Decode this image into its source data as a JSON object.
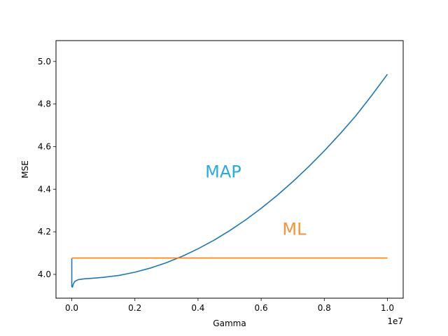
{
  "chart_data": {
    "type": "line",
    "title": "",
    "xlabel": "Gamma",
    "ylabel": "MSE",
    "x_offset_label": "1e7",
    "xlim": [
      -0.05,
      1.05
    ],
    "ylim": [
      3.888,
      5.098
    ],
    "x_ticks": [
      {
        "value": 0.0,
        "label": "0.0"
      },
      {
        "value": 0.2,
        "label": "0.2"
      },
      {
        "value": 0.4,
        "label": "0.4"
      },
      {
        "value": 0.6,
        "label": "0.6"
      },
      {
        "value": 0.8,
        "label": "0.8"
      },
      {
        "value": 1.0,
        "label": "1.0"
      }
    ],
    "y_ticks": [
      {
        "value": 4.0,
        "label": "4.0"
      },
      {
        "value": 4.2,
        "label": "4.2"
      },
      {
        "value": 4.4,
        "label": "4.4"
      },
      {
        "value": 4.6,
        "label": "4.6"
      },
      {
        "value": 4.8,
        "label": "4.8"
      },
      {
        "value": 5.0,
        "label": "5.0"
      }
    ],
    "grid": false,
    "legend": "none",
    "series": [
      {
        "color": "#1f77b4",
        "points": [
          [
            0.0,
            4.075
          ],
          [
            0.0,
            3.943
          ],
          [
            0.002,
            3.94
          ],
          [
            0.005,
            3.955
          ],
          [
            0.01,
            3.967
          ],
          [
            0.02,
            3.975
          ],
          [
            0.04,
            3.979
          ],
          [
            0.06,
            3.981
          ],
          [
            0.1,
            3.986
          ],
          [
            0.15,
            3.995
          ],
          [
            0.2,
            4.01
          ],
          [
            0.25,
            4.03
          ],
          [
            0.3,
            4.055
          ],
          [
            0.35,
            4.085
          ],
          [
            0.4,
            4.12
          ],
          [
            0.45,
            4.16
          ],
          [
            0.5,
            4.205
          ],
          [
            0.55,
            4.255
          ],
          [
            0.6,
            4.31
          ],
          [
            0.65,
            4.37
          ],
          [
            0.7,
            4.435
          ],
          [
            0.75,
            4.505
          ],
          [
            0.8,
            4.58
          ],
          [
            0.85,
            4.66
          ],
          [
            0.9,
            4.745
          ],
          [
            0.95,
            4.84
          ],
          [
            1.0,
            4.94
          ]
        ]
      },
      {
        "color": "#ff7f0e",
        "points": [
          [
            0.0,
            4.077
          ],
          [
            1.0,
            4.077
          ]
        ]
      }
    ],
    "annotations": [
      {
        "text": "MAP",
        "x": 0.48,
        "y": 4.455,
        "color": "#29abe2"
      },
      {
        "text": "ML",
        "x": 0.705,
        "y": 4.185,
        "color": "#f7923a"
      }
    ]
  }
}
